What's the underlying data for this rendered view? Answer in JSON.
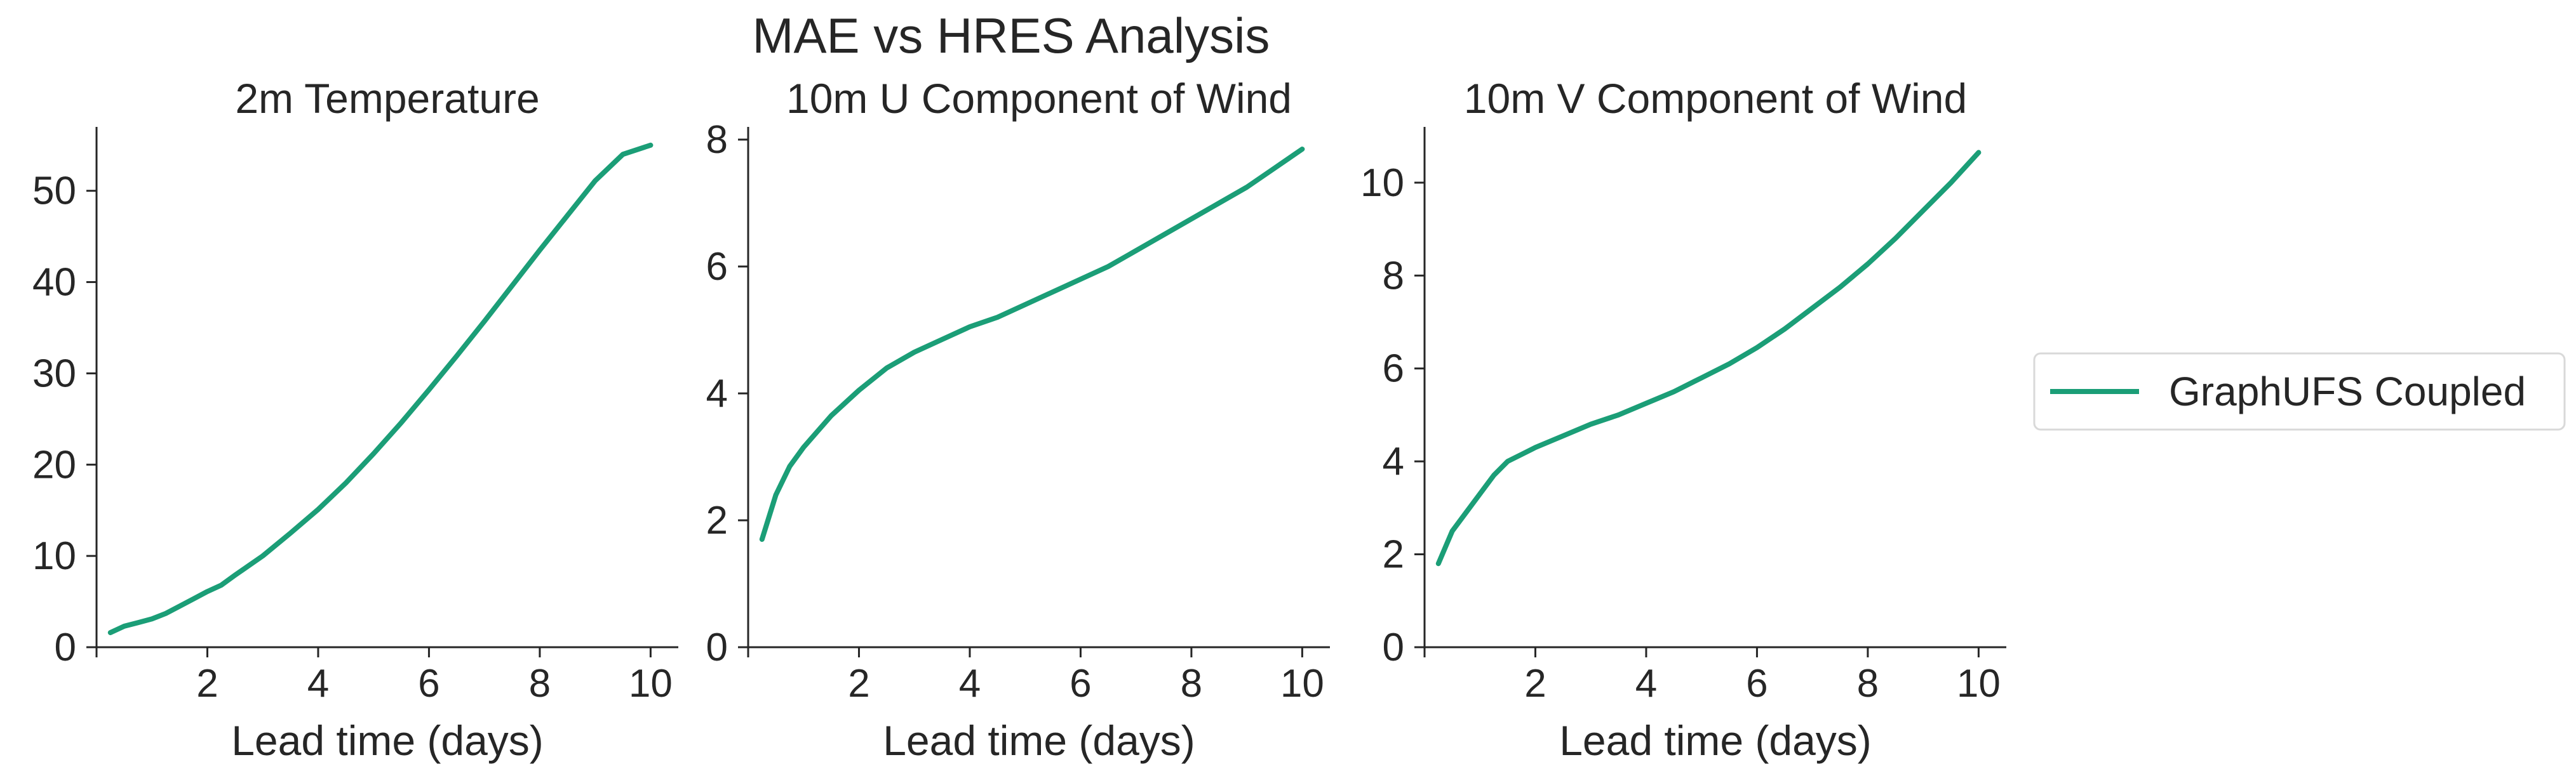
{
  "figure": {
    "title": "MAE vs HRES Analysis",
    "accent_color": "#1b9e77"
  },
  "legend": {
    "entries": [
      {
        "label": "GraphUFS Coupled",
        "color": "#1b9e77"
      }
    ],
    "placement": "right, vertically centered"
  },
  "chart_data": [
    {
      "type": "line",
      "title": "2m Temperature",
      "xlabel": "Lead time (days)",
      "ylabel": "",
      "xlim": [
        0,
        10.5
      ],
      "ylim": [
        0,
        57
      ],
      "xticks": [
        2,
        4,
        6,
        8,
        10
      ],
      "yticks": [
        0,
        10,
        20,
        30,
        40,
        50
      ],
      "grid": false,
      "series": [
        {
          "name": "GraphUFS Coupled",
          "color": "#1b9e77",
          "x": [
            0.25,
            0.5,
            0.75,
            1,
            1.25,
            1.5,
            1.75,
            2,
            2.25,
            2.5,
            3,
            3.5,
            4,
            4.5,
            5,
            5.5,
            6,
            6.5,
            7,
            7.5,
            8,
            8.5,
            9,
            9.5,
            10
          ],
          "y": [
            1.6,
            2.3,
            2.7,
            3.1,
            3.7,
            4.5,
            5.3,
            6.1,
            6.8,
            7.9,
            10.0,
            12.5,
            15.1,
            18.0,
            21.2,
            24.6,
            28.2,
            31.9,
            35.7,
            39.6,
            43.5,
            47.3,
            51.1,
            54.0,
            55.0
          ]
        }
      ]
    },
    {
      "type": "line",
      "title": "10m U Component of Wind",
      "xlabel": "Lead time (days)",
      "ylabel": "",
      "xlim": [
        0,
        10.5
      ],
      "ylim": [
        0,
        8.2
      ],
      "xticks": [
        2,
        4,
        6,
        8,
        10
      ],
      "yticks": [
        0,
        2,
        4,
        6,
        8
      ],
      "grid": false,
      "series": [
        {
          "name": "GraphUFS Coupled",
          "color": "#1b9e77",
          "x": [
            0.25,
            0.5,
            0.75,
            1,
            1.25,
            1.5,
            1.75,
            2,
            2.5,
            3,
            3.5,
            4,
            4.5,
            5,
            5.5,
            6,
            6.5,
            7,
            7.5,
            8,
            8.5,
            9,
            9.5,
            10
          ],
          "y": [
            1.7,
            2.4,
            2.85,
            3.15,
            3.4,
            3.65,
            3.85,
            4.05,
            4.4,
            4.65,
            4.85,
            5.05,
            5.2,
            5.4,
            5.6,
            5.8,
            6.0,
            6.25,
            6.5,
            6.75,
            7.0,
            7.25,
            7.55,
            7.85
          ]
        }
      ]
    },
    {
      "type": "line",
      "title": "10m V Component of Wind",
      "xlabel": "Lead time (days)",
      "ylabel": "",
      "xlim": [
        0,
        10.5
      ],
      "ylim": [
        0,
        11.2
      ],
      "xticks": [
        2,
        4,
        6,
        8,
        10
      ],
      "yticks": [
        0,
        2,
        4,
        6,
        8,
        10
      ],
      "grid": false,
      "series": [
        {
          "name": "GraphUFS Coupled",
          "color": "#1b9e77",
          "x": [
            0.25,
            0.5,
            0.75,
            1,
            1.25,
            1.5,
            1.75,
            2,
            2.5,
            3,
            3.5,
            4,
            4.5,
            5,
            5.5,
            6,
            6.5,
            7,
            7.5,
            8,
            8.5,
            9,
            9.5,
            10
          ],
          "y": [
            1.8,
            2.5,
            2.9,
            3.3,
            3.7,
            4.0,
            4.15,
            4.3,
            4.55,
            4.8,
            5.0,
            5.25,
            5.5,
            5.8,
            6.1,
            6.45,
            6.85,
            7.3,
            7.75,
            8.25,
            8.8,
            9.4,
            10.0,
            10.65
          ]
        }
      ]
    }
  ]
}
